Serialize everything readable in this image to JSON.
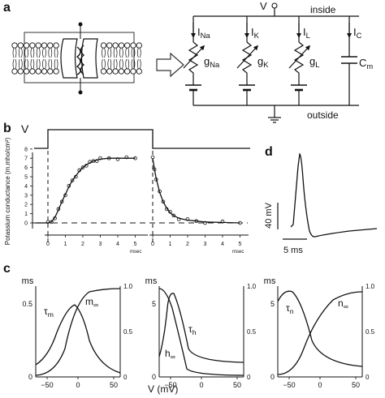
{
  "panels": {
    "a": {
      "label": "a",
      "circuit": {
        "voltage": "V",
        "inside": "inside",
        "outside": "outside",
        "currents": [
          {
            "main": "I",
            "sub": "Na"
          },
          {
            "main": "I",
            "sub": "K"
          },
          {
            "main": "I",
            "sub": "L"
          },
          {
            "main": "I",
            "sub": "C"
          }
        ],
        "elements": [
          {
            "main": "g",
            "sub": "Na"
          },
          {
            "main": "g",
            "sub": "K"
          },
          {
            "main": "g",
            "sub": "L"
          },
          {
            "main": "C",
            "sub": "m"
          }
        ]
      }
    },
    "b": {
      "label": "b",
      "voltage_label": "V",
      "ylabel": "Potassium conductance (m.mho/cm²)",
      "x_ticks_left": [
        "0",
        "1",
        "2",
        "3",
        "4",
        "5"
      ],
      "x_ticks_right": [
        "0",
        "1",
        "2",
        "3",
        "4",
        "5"
      ],
      "x_unit": "msec",
      "y_ticks": [
        "0",
        "1",
        "2",
        "3",
        "4",
        "5",
        "6",
        "7",
        "8"
      ]
    },
    "c": {
      "label": "c",
      "plots": [
        {
          "left_unit": "ms",
          "left_ticks": [
            "0.5",
            "0"
          ],
          "right_ticks": [
            "1.0",
            "0.5",
            "0"
          ],
          "labels": [
            {
              "main": "τ",
              "sub": "m"
            },
            {
              "main": "m",
              "sub": "∞"
            }
          ]
        },
        {
          "left_unit": "ms",
          "left_ticks": [
            "5",
            "0"
          ],
          "right_ticks": [
            "1.0",
            "0.5",
            "0"
          ],
          "labels": [
            {
              "main": "τ",
              "sub": "h"
            },
            {
              "main": "h",
              "sub": "∞"
            }
          ]
        },
        {
          "left_unit": "ms",
          "left_ticks": [
            "5",
            "0"
          ],
          "right_ticks": [
            "1.0",
            "0.5",
            "0"
          ],
          "labels": [
            {
              "main": "τ",
              "sub": "n"
            },
            {
              "main": "n",
              "sub": "∞"
            }
          ]
        }
      ],
      "x_ticks": [
        "−50",
        "0",
        "50"
      ],
      "x_label": "V (mV)"
    },
    "d": {
      "label": "d",
      "scale_v": "40 mV",
      "scale_t": "5 ms"
    }
  },
  "chart_data": [
    {
      "type": "line",
      "title": "",
      "xlabel": "msec",
      "ylabel": "Potassium conductance (m.mho/cm²)",
      "xlim": [
        0,
        5.4
      ],
      "ylim": [
        0,
        8
      ],
      "series": [
        {
          "x": [
            0,
            0.2,
            0.4,
            0.6,
            0.8,
            1.0,
            1.2,
            1.4,
            1.6,
            1.8,
            2.0,
            2.2,
            2.4,
            2.6,
            2.8,
            3.0,
            3.5,
            4.0,
            4.5,
            5.0
          ],
          "y": [
            0,
            0.1,
            0.6,
            1.4,
            2.3,
            3.1,
            3.9,
            4.6,
            5.1,
            5.6,
            6.0,
            6.3,
            6.5,
            6.7,
            6.8,
            6.9,
            7.0,
            7.0,
            7.0,
            7.0
          ]
        },
        {
          "x": [
            0,
            0.1,
            0.2,
            0.4,
            0.6,
            0.8,
            1.0,
            1.2,
            1.5,
            2.0,
            2.5,
            3.0,
            4.0,
            5.0
          ],
          "y": [
            7.0,
            5.8,
            4.8,
            3.3,
            2.3,
            1.6,
            1.1,
            0.8,
            0.5,
            0.3,
            0.2,
            0.1,
            0.05,
            0.0
          ]
        }
      ]
    }
  ]
}
